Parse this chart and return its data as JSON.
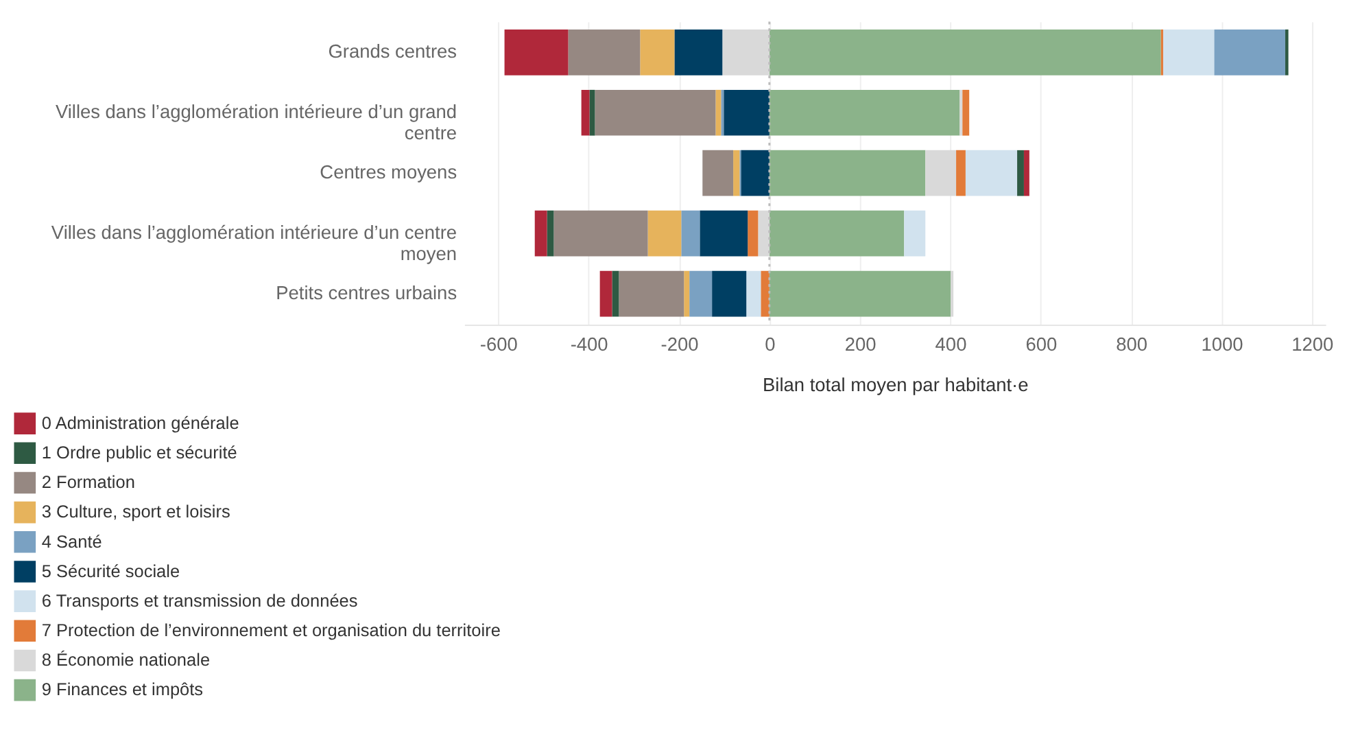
{
  "chart_data": {
    "type": "bar",
    "orientation": "horizontal",
    "stacked": true,
    "xlabel": "Bilan total moyen par habitant·e",
    "categories": [
      "Grands centres",
      "Villes dans l’agglomération intérieure d’un grand centre",
      "Centres moyens",
      "Villes dans l’agglomération intérieure d’un centre moyen",
      "Petits centres urbains"
    ],
    "series": [
      {
        "name": "9 Finances et impôts",
        "color": "#8bb38a",
        "values": [
          866,
          421,
          345,
          298,
          401
        ]
      },
      {
        "name": "8 Économie nationale",
        "color": "#d9d9d9",
        "values": [
          -104,
          6,
          68,
          -25,
          6
        ]
      },
      {
        "name": "7 Protection de l’environnement et organisation du territoire",
        "color": "#e27b39",
        "values": [
          5,
          15,
          21,
          -23,
          -19
        ]
      },
      {
        "name": "6 Transports et transmission de données",
        "color": "#d1e2ee",
        "values": [
          113,
          null,
          114,
          47,
          -32
        ]
      },
      {
        "name": "5 Sécurité sociale",
        "color": "#003f63",
        "values": [
          -106,
          -101,
          -63,
          -106,
          -76
        ]
      },
      {
        "name": "4 Santé",
        "color": "#7aa1c2",
        "values": [
          157,
          -6,
          -3,
          -41,
          -50
        ]
      },
      {
        "name": "3 Culture, sport et loisirs",
        "color": "#e6b35c",
        "values": [
          -76,
          -12,
          -14,
          -74,
          -12
        ]
      },
      {
        "name": "2 Formation",
        "color": "#968882",
        "values": [
          -159,
          -267,
          -68,
          -208,
          -144
        ]
      },
      {
        "name": "1 Ordre public et sécurité",
        "color": "#2e5a43",
        "values": [
          7,
          -12,
          15,
          -15,
          -15
        ]
      },
      {
        "name": "0 Administration générale",
        "color": "#b0283a",
        "values": [
          -141,
          -18,
          12,
          -27,
          -27
        ]
      }
    ],
    "xlim": [
      -675,
      1230
    ],
    "xticks": [
      -600,
      -400,
      -200,
      0,
      200,
      400,
      600,
      800,
      1000,
      1200
    ],
    "grid": "x",
    "legend": "bottom left",
    "ref_lines": [
      {
        "axis": "x",
        "value": 0,
        "color": "#bbbbbb",
        "line_style": "dotted"
      }
    ]
  }
}
